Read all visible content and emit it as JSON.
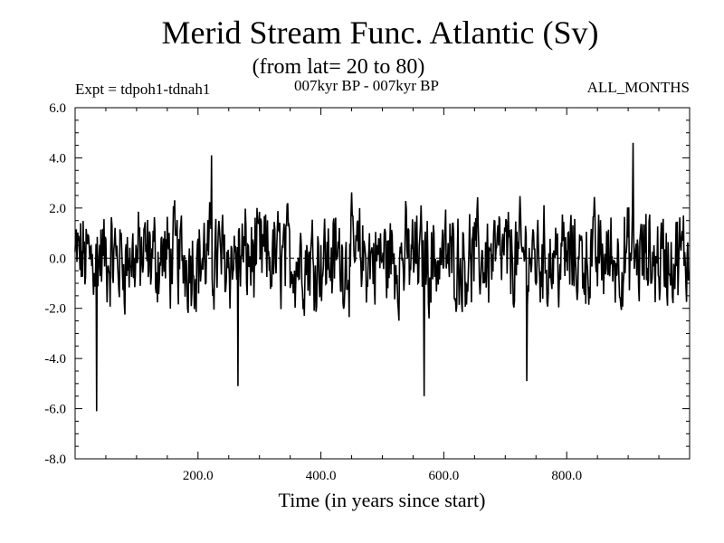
{
  "header": {
    "title": "Merid Stream Func. Atlantic (Sv)",
    "subtitle": "(from lat= 20 to 80)",
    "experiment": "Expt = tdpoh1-tdnah1",
    "period": "007kyr BP - 007kyr BP",
    "months": "ALL_MONTHS"
  },
  "chart_data": {
    "type": "line",
    "title": "Merid Stream Func. Atlantic (Sv)",
    "xlabel": "Time (in years since start)",
    "ylabel": "",
    "xlim": [
      0,
      1000
    ],
    "ylim": [
      -8.0,
      6.0
    ],
    "xticks": [
      200,
      400,
      600,
      800
    ],
    "xtick_labels": [
      "200.0",
      "400.0",
      "600.0",
      "800.0"
    ],
    "yticks": [
      6.0,
      4.0,
      2.0,
      0.0,
      -2.0,
      -4.0,
      -6.0,
      -8.0
    ],
    "ytick_labels": [
      "6.0",
      "4.0",
      "2.0",
      "0.0",
      "-2.0",
      "-4.0",
      "-6.0",
      "-8.0"
    ],
    "zero_line": true,
    "series": [
      {
        "name": "Merid Stream Func.",
        "sampling": "yearly values, x = 0..999",
        "notable_points": [
          {
            "x": 35,
            "y": -6.1
          },
          {
            "x": 265,
            "y": -5.1
          },
          {
            "x": 568,
            "y": -5.5
          },
          {
            "x": 735,
            "y": -4.9
          },
          {
            "x": 222,
            "y": 4.1
          },
          {
            "x": 908,
            "y": 4.6
          }
        ]
      }
    ]
  }
}
